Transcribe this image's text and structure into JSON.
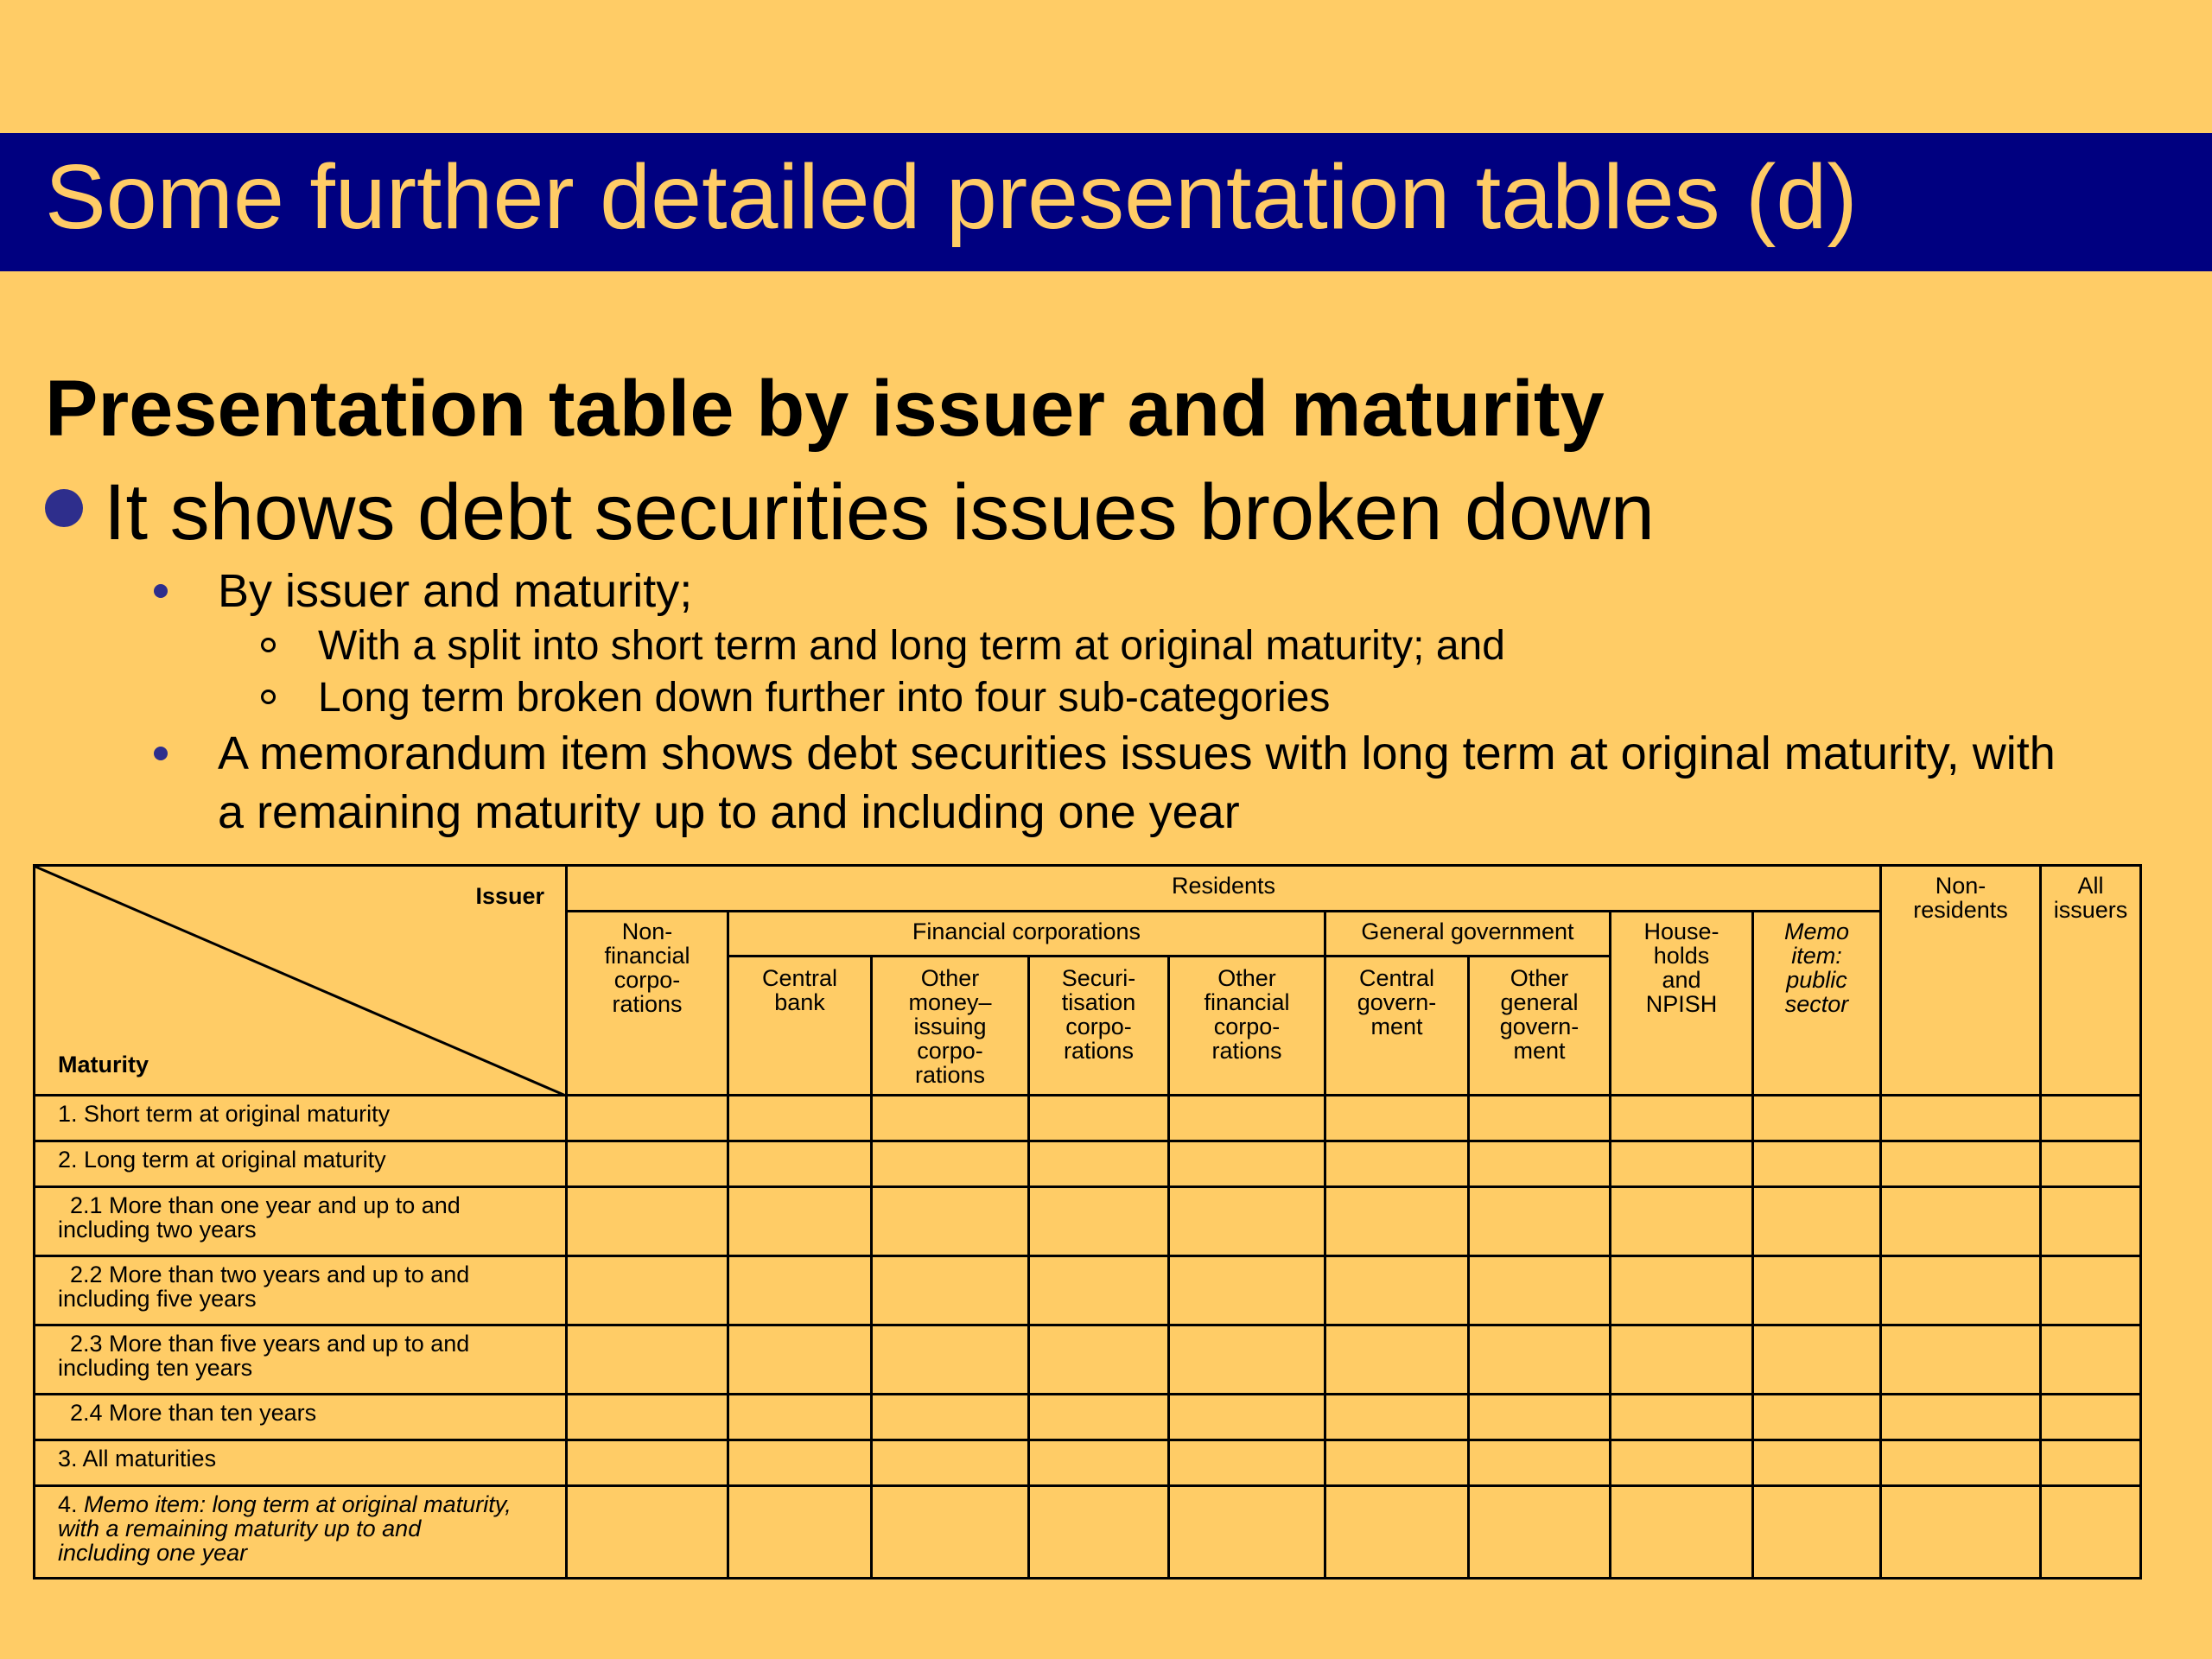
{
  "slide": {
    "title": "Some further detailed presentation tables (d)",
    "heading": "Presentation table by issuer and maturity",
    "bullet1": "It shows debt securities issues broken down",
    "bullet2a": "By issuer and maturity;",
    "bullet3a": "With a split into short term and long term at original maturity; and",
    "bullet3b": "Long term broken down further into four sub-categories",
    "bullet2b_line1": "A memorandum item shows debt securities issues with long term at original maturity, with",
    "bullet2b_line2": "a remaining maturity up to and including one year"
  },
  "table": {
    "corner_issuer": "Issuer",
    "corner_maturity": "Maturity",
    "residents": "Residents",
    "non_residents": [
      "Non-",
      "residents"
    ],
    "all_issuers": [
      "All",
      "issuers"
    ],
    "non_financial": [
      "Non-",
      "financial",
      "corpo-",
      "rations"
    ],
    "financial_corporations": "Financial corporations",
    "general_government": "General government",
    "households": [
      "House-",
      "holds",
      "and",
      "NPISH"
    ],
    "memo_public": [
      "Memo",
      "item:",
      "public",
      "sector"
    ],
    "central_bank": [
      "Central",
      "bank"
    ],
    "other_mfi": [
      "Other",
      "money–",
      "issuing",
      "corpo-",
      "rations"
    ],
    "securitisation": [
      "Securi-",
      "tisation",
      "corpo-",
      "rations"
    ],
    "other_financial": [
      "Other",
      "financial",
      "corpo-",
      "rations"
    ],
    "central_government": [
      "Central",
      "govern-",
      "ment"
    ],
    "other_general_government": [
      "Other",
      "general",
      "govern-",
      "ment"
    ],
    "rows": {
      "r1": "1. Short term at original maturity",
      "r2": "2. Long term at original maturity",
      "r21_a": "2.1 More than one year and up to and",
      "r21_b": "including two years",
      "r22_a": "2.2 More than two years and up to and",
      "r22_b": "including five years",
      "r23_a": "2.3 More than five years and up to and",
      "r23_b": "including ten years",
      "r24": "2.4 More than ten years",
      "r3": "3. All maturities",
      "r4_num": "4. ",
      "r4_a": "Memo item",
      "r4_b": ": long term at original maturity,",
      "r4_c": "with a remaining maturity up to and",
      "r4_d": "including one year"
    }
  },
  "colors": {
    "background": "#FFCC66",
    "title_bar": "#000080",
    "bullet": "#2E2E8C"
  }
}
